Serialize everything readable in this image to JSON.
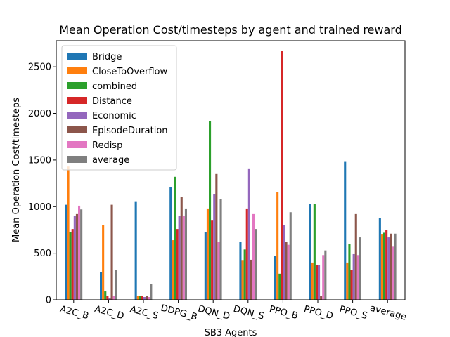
{
  "chart_data": {
    "type": "bar",
    "title": "Mean Operation Cost/timesteps by agent and trained reward",
    "xlabel": "SB3 Agents",
    "ylabel": "Mean Operation Cost/timesteps",
    "ylim": [
      0,
      2780
    ],
    "yticks": [
      0,
      500,
      1000,
      1500,
      2000,
      2500
    ],
    "grid": false,
    "legend_position": "upper-left",
    "categories": [
      "A2C_B",
      "A2C_D",
      "A2C_S",
      "DDPG_B",
      "DQN_D",
      "DQN_S",
      "PPO_B",
      "PPO_D",
      "PPO_S",
      "average"
    ],
    "series": [
      {
        "name": "Bridge",
        "color": "#1f77b4",
        "values": [
          1020,
          300,
          1050,
          1210,
          730,
          620,
          470,
          1030,
          1480,
          880
        ]
      },
      {
        "name": "CloseToOverflow",
        "color": "#ff7f0e",
        "values": [
          1430,
          800,
          40,
          640,
          980,
          420,
          1160,
          400,
          400,
          700
        ]
      },
      {
        "name": "combined",
        "color": "#2ca02c",
        "values": [
          730,
          90,
          40,
          1320,
          1920,
          540,
          280,
          1030,
          600,
          720
        ]
      },
      {
        "name": "Distance",
        "color": "#d62728",
        "values": [
          760,
          40,
          40,
          760,
          850,
          980,
          2670,
          370,
          320,
          750
        ]
      },
      {
        "name": "Economic",
        "color": "#9467bd",
        "values": [
          900,
          20,
          30,
          900,
          1130,
          1410,
          800,
          370,
          490,
          670
        ]
      },
      {
        "name": "EpisodeDuration",
        "color": "#8c564b",
        "values": [
          920,
          1020,
          40,
          1100,
          1350,
          430,
          620,
          40,
          920,
          710
        ]
      },
      {
        "name": "Redisp",
        "color": "#e377c2",
        "values": [
          1010,
          40,
          30,
          900,
          620,
          920,
          590,
          480,
          480,
          570
        ]
      },
      {
        "name": "average",
        "color": "#7f7f7f",
        "values": [
          970,
          320,
          170,
          980,
          1080,
          760,
          940,
          530,
          670,
          710
        ]
      }
    ]
  }
}
